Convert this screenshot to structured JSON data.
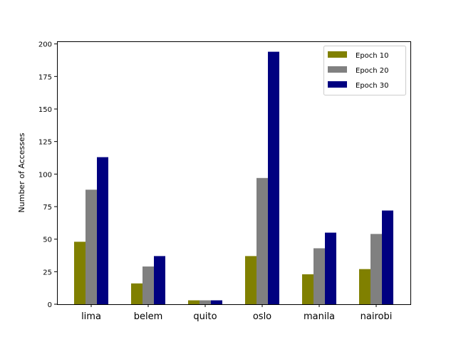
{
  "chart_data": {
    "type": "bar",
    "title": "",
    "xlabel": "",
    "ylabel": "Number of Accesses",
    "categories": [
      "lima",
      "belem",
      "quito",
      "oslo",
      "manila",
      "nairobi"
    ],
    "series": [
      {
        "name": "Epoch 10",
        "color": "#808000",
        "values": [
          48,
          16,
          3,
          37,
          23,
          27
        ]
      },
      {
        "name": "Epoch 20",
        "color": "#808080",
        "values": [
          88,
          29,
          3,
          97,
          43,
          54
        ]
      },
      {
        "name": "Epoch 30",
        "color": "#000080",
        "values": [
          113,
          37,
          3,
          194,
          55,
          72
        ]
      }
    ],
    "ylim": [
      0,
      202
    ],
    "yticks": [
      0,
      25,
      50,
      75,
      100,
      125,
      150,
      175,
      200
    ],
    "grid": false,
    "legend_position": "top-right"
  }
}
